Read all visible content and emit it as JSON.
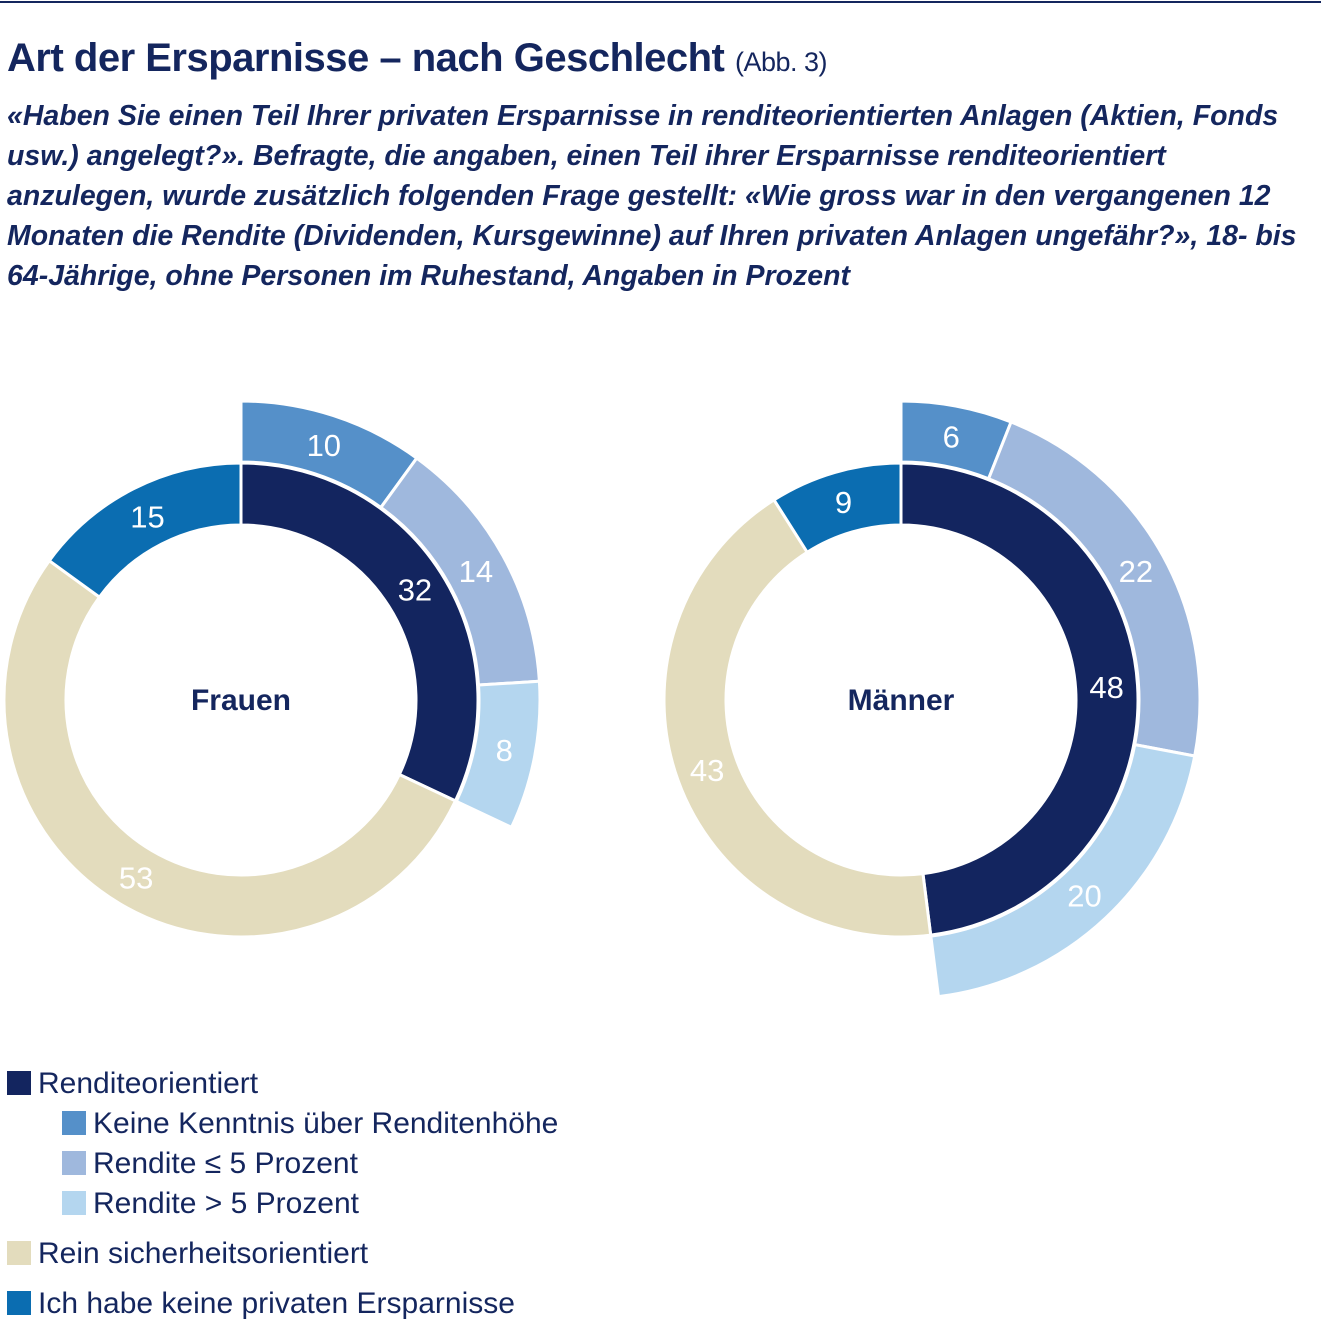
{
  "chart_data": {
    "type": "pie",
    "title": "Art der Ersparnisse – nach Geschlecht",
    "figure_label": "(Abb. 3)",
    "subtitle": "«Haben Sie einen Teil Ihrer privaten Ersparnisse in renditeorientierten Anlagen (Aktien, Fonds usw.) angelegt?». Befragte, die angaben, einen Teil ihrer Ersparnisse renditeorientiert anzulegen, wurde zusätzlich folgenden Frage gestellt: «Wie gross war in den vergangenen 12 Monaten die Rendite (Dividenden, Kursgewinne) auf Ihren privaten Anlagen ungefähr?», 18- bis 64-Jährige, ohne Personen im Ruhestand, Angaben in Prozent",
    "unit": "%",
    "legend_position": "bottom-left",
    "categories": [
      "Renditeorientiert",
      "Rein sicherheitsorientiert",
      "Ich habe keine privaten Ersparnisse"
    ],
    "subcategories": [
      "Keine Kenntnis über Renditenhöhe",
      "Rendite ≤ 5 Prozent",
      "Rendite > 5 Prozent"
    ],
    "colors": {
      "Renditeorientiert": "#13255f",
      "Keine Kenntnis über Renditenhöhe": "#5590c9",
      "Rendite ≤ 5 Prozent": "#9fb8dd",
      "Rendite > 5 Prozent": "#b4d6ef",
      "Rein sicherheitsorientiert": "#e3dcbd",
      "Ich habe keine privaten Ersparnisse": "#0b6db1"
    },
    "donuts": [
      {
        "name": "Frauen",
        "values": [
          32,
          53,
          15
        ],
        "sub_values": [
          10,
          14,
          8
        ]
      },
      {
        "name": "Männer",
        "values": [
          48,
          43,
          9
        ],
        "sub_values": [
          6,
          22,
          20
        ]
      }
    ]
  },
  "legend": [
    {
      "label": "Renditeorientiert",
      "indent": false
    },
    {
      "label": "Keine Kenntnis über Renditenhöhe",
      "indent": true
    },
    {
      "label": "Rendite ≤ 5 Prozent",
      "indent": true
    },
    {
      "label": "Rendite > 5 Prozent",
      "indent": true
    },
    {
      "label": "Rein sicherheitsorientiert",
      "indent": false
    },
    {
      "label": "Ich habe keine privaten Ersparnisse",
      "indent": false
    }
  ]
}
